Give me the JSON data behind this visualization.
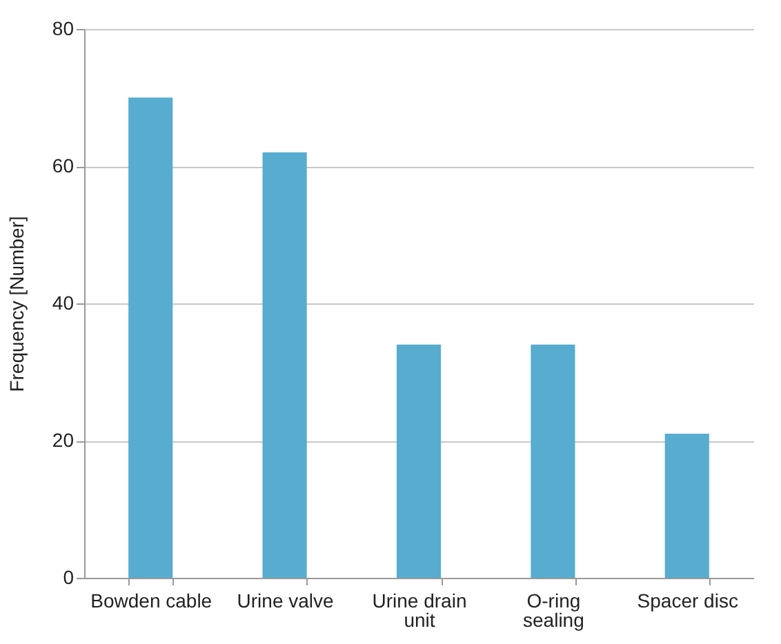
{
  "chart_data": {
    "type": "bar",
    "ylabel": "Frequency [Number]",
    "categories": [
      "Bowden cable",
      "Urine valve",
      "Urine drain unit",
      "O-ring sealing",
      "Spacer disc"
    ],
    "values": [
      70,
      62,
      34,
      34,
      21
    ],
    "color": "#57acd0",
    "ylim": [
      0,
      80
    ],
    "yticks": [
      0,
      20,
      40,
      60,
      80
    ],
    "grid": "y"
  }
}
